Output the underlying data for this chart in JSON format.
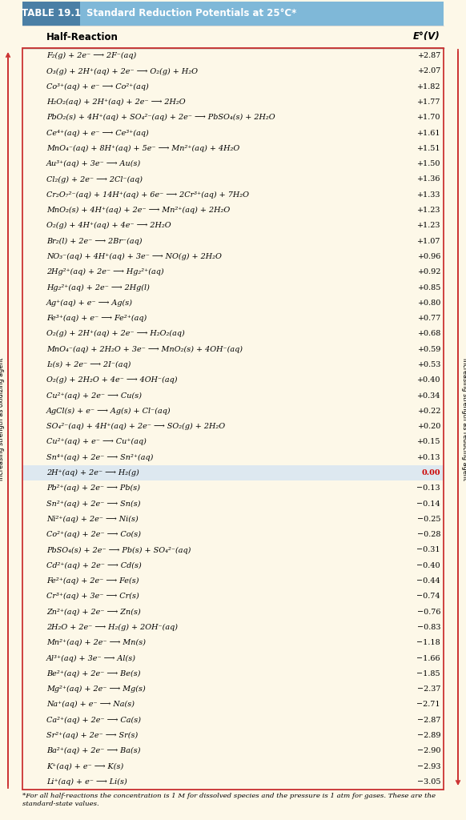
{
  "title_label": "TABLE 19.1",
  "title_text": "  Standard Reduction Potentials at 25°C*",
  "header_bg": "#7fb8d8",
  "table_bg": "#fdf8e8",
  "col1_header": "Half-Reaction",
  "col2_header": "E°(V)",
  "footnote": "*For all half-reactions the concentration is 1 M for dissolved species and the pressure is 1 atm for gases. These are the\nstandard-state values.",
  "left_arrow_label": "Increasing strength as oxidizing agent",
  "right_arrow_label": "Increasing strength as reducing agent",
  "highlight_row": 27,
  "border_color": "#cc3333",
  "rows": [
    [
      "F₂(g) + 2e⁻ ⟶ 2F⁻(aq)",
      "+2.87"
    ],
    [
      "O₃(g) + 2H⁺(aq) + 2e⁻ ⟶ O₂(g) + H₂O",
      "+2.07"
    ],
    [
      "Co³⁺(aq) + e⁻ ⟶ Co²⁺(aq)",
      "+1.82"
    ],
    [
      "H₂O₂(aq) + 2H⁺(aq) + 2e⁻ ⟶ 2H₂O",
      "+1.77"
    ],
    [
      "PbO₂(s) + 4H⁺(aq) + SO₄²⁻(aq) + 2e⁻ ⟶ PbSO₄(s) + 2H₂O",
      "+1.70"
    ],
    [
      "Ce⁴⁺(aq) + e⁻ ⟶ Ce³⁺(aq)",
      "+1.61"
    ],
    [
      "MnO₄⁻(aq) + 8H⁺(aq) + 5e⁻ ⟶ Mn²⁺(aq) + 4H₂O",
      "+1.51"
    ],
    [
      "Au³⁺(aq) + 3e⁻ ⟶ Au(s)",
      "+1.50"
    ],
    [
      "Cl₂(g) + 2e⁻ ⟶ 2Cl⁻(aq)",
      "+1.36"
    ],
    [
      "Cr₂O₇²⁻(aq) + 14H⁺(aq) + 6e⁻ ⟶ 2Cr³⁺(aq) + 7H₂O",
      "+1.33"
    ],
    [
      "MnO₂(s) + 4H⁺(aq) + 2e⁻ ⟶ Mn²⁺(aq) + 2H₂O",
      "+1.23"
    ],
    [
      "O₂(g) + 4H⁺(aq) + 4e⁻ ⟶ 2H₂O",
      "+1.23"
    ],
    [
      "Br₂(l) + 2e⁻ ⟶ 2Br⁻(aq)",
      "+1.07"
    ],
    [
      "NO₃⁻(aq) + 4H⁺(aq) + 3e⁻ ⟶ NO(g) + 2H₂O",
      "+0.96"
    ],
    [
      "2Hg²⁺(aq) + 2e⁻ ⟶ Hg₂²⁺(aq)",
      "+0.92"
    ],
    [
      "Hg₂²⁺(aq) + 2e⁻ ⟶ 2Hg(l)",
      "+0.85"
    ],
    [
      "Ag⁺(aq) + e⁻ ⟶ Ag(s)",
      "+0.80"
    ],
    [
      "Fe³⁺(aq) + e⁻ ⟶ Fe²⁺(aq)",
      "+0.77"
    ],
    [
      "O₂(g) + 2H⁺(aq) + 2e⁻ ⟶ H₂O₂(aq)",
      "+0.68"
    ],
    [
      "MnO₄⁻(aq) + 2H₂O + 3e⁻ ⟶ MnO₂(s) + 4OH⁻(aq)",
      "+0.59"
    ],
    [
      "I₂(s) + 2e⁻ ⟶ 2I⁻(aq)",
      "+0.53"
    ],
    [
      "O₂(g) + 2H₂O + 4e⁻ ⟶ 4OH⁻(aq)",
      "+0.40"
    ],
    [
      "Cu²⁺(aq) + 2e⁻ ⟶ Cu(s)",
      "+0.34"
    ],
    [
      "AgCl(s) + e⁻ ⟶ Ag(s) + Cl⁻(aq)",
      "+0.22"
    ],
    [
      "SO₄²⁻(aq) + 4H⁺(aq) + 2e⁻ ⟶ SO₂(g) + 2H₂O",
      "+0.20"
    ],
    [
      "Cu²⁺(aq) + e⁻ ⟶ Cu⁺(aq)",
      "+0.15"
    ],
    [
      "Sn⁴⁺(aq) + 2e⁻ ⟶ Sn²⁺(aq)",
      "+0.13"
    ],
    [
      "2H⁺(aq) + 2e⁻ ⟶ H₂(g)",
      "0.00"
    ],
    [
      "Pb²⁺(aq) + 2e⁻ ⟶ Pb(s)",
      "−0.13"
    ],
    [
      "Sn²⁺(aq) + 2e⁻ ⟶ Sn(s)",
      "−0.14"
    ],
    [
      "Ni²⁺(aq) + 2e⁻ ⟶ Ni(s)",
      "−0.25"
    ],
    [
      "Co²⁺(aq) + 2e⁻ ⟶ Co(s)",
      "−0.28"
    ],
    [
      "PbSO₄(s) + 2e⁻ ⟶ Pb(s) + SO₄²⁻(aq)",
      "−0.31"
    ],
    [
      "Cd²⁺(aq) + 2e⁻ ⟶ Cd(s)",
      "−0.40"
    ],
    [
      "Fe²⁺(aq) + 2e⁻ ⟶ Fe(s)",
      "−0.44"
    ],
    [
      "Cr³⁺(aq) + 3e⁻ ⟶ Cr(s)",
      "−0.74"
    ],
    [
      "Zn²⁺(aq) + 2e⁻ ⟶ Zn(s)",
      "−0.76"
    ],
    [
      "2H₂O + 2e⁻ ⟶ H₂(g) + 2OH⁻(aq)",
      "−0.83"
    ],
    [
      "Mn²⁺(aq) + 2e⁻ ⟶ Mn(s)",
      "−1.18"
    ],
    [
      "Al³⁺(aq) + 3e⁻ ⟶ Al(s)",
      "−1.66"
    ],
    [
      "Be²⁺(aq) + 2e⁻ ⟶ Be(s)",
      "−1.85"
    ],
    [
      "Mg²⁺(aq) + 2e⁻ ⟶ Mg(s)",
      "−2.37"
    ],
    [
      "Na⁺(aq) + e⁻ ⟶ Na(s)",
      "−2.71"
    ],
    [
      "Ca²⁺(aq) + 2e⁻ ⟶ Ca(s)",
      "−2.87"
    ],
    [
      "Sr²⁺(aq) + 2e⁻ ⟶ Sr(s)",
      "−2.89"
    ],
    [
      "Ba²⁺(aq) + 2e⁻ ⟶ Ba(s)",
      "−2.90"
    ],
    [
      "K⁺(aq) + e⁻ ⟶ K(s)",
      "−2.93"
    ],
    [
      "Li⁺(aq) + e⁻ ⟶ Li(s)",
      "−3.05"
    ]
  ]
}
